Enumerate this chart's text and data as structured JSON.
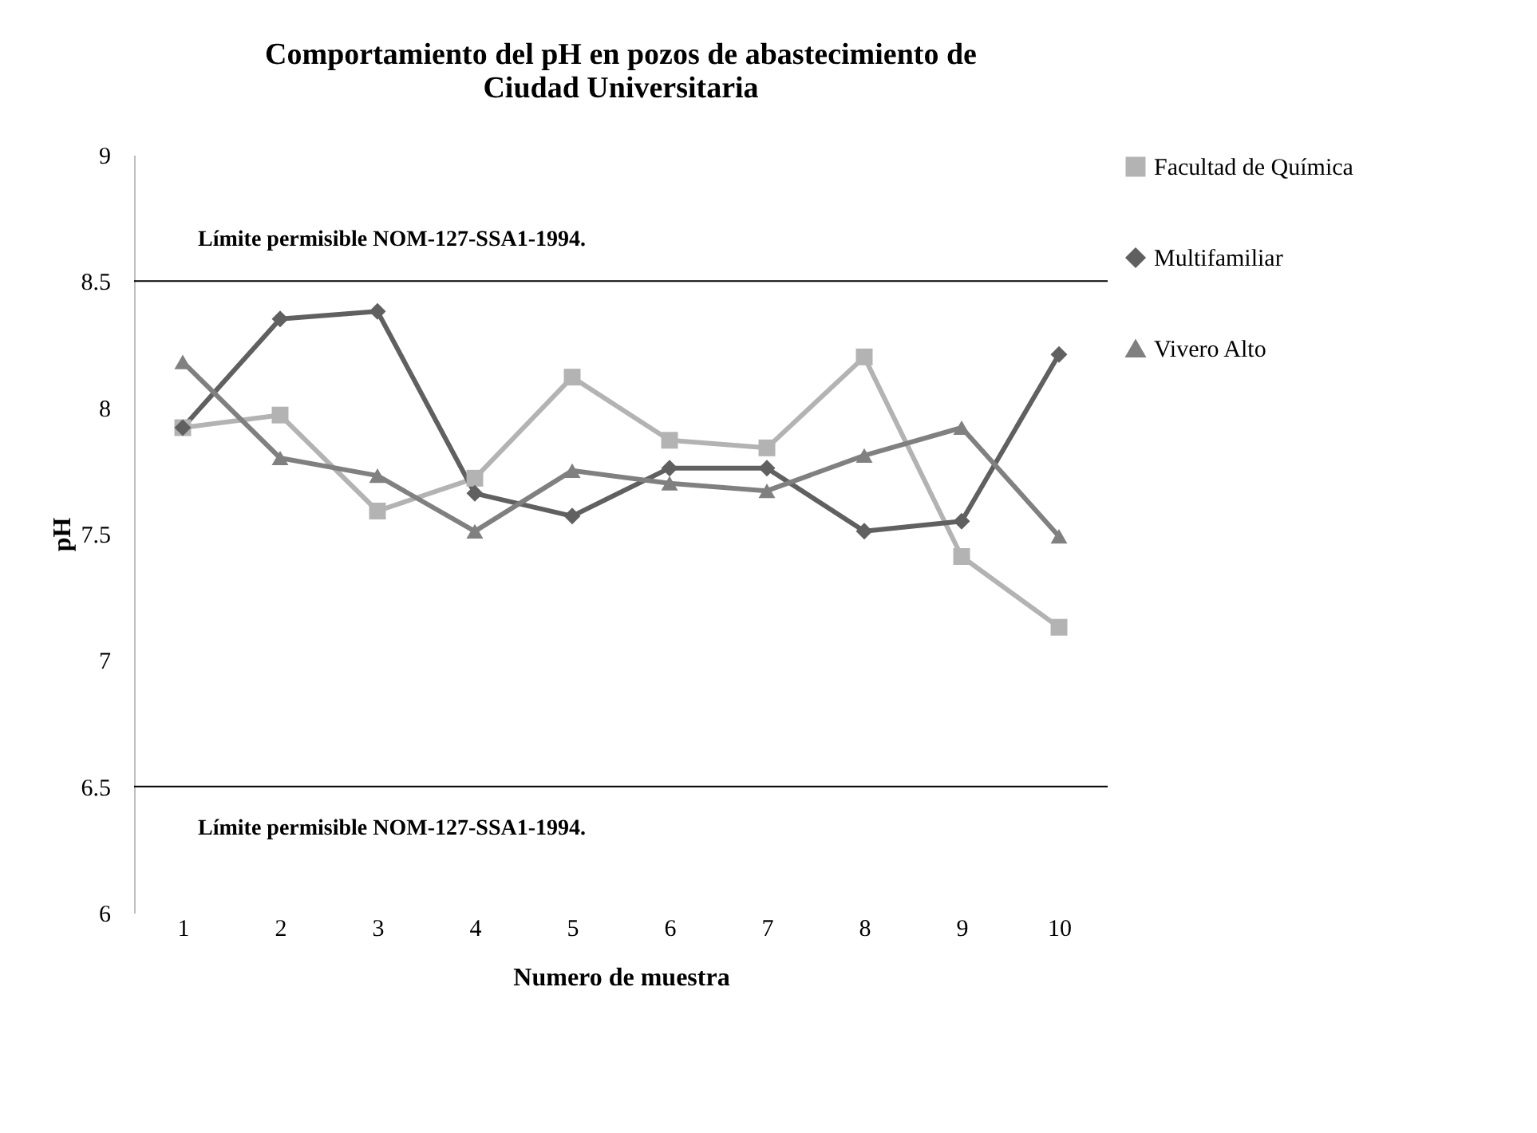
{
  "chart_data": {
    "type": "line",
    "title": "Comportamiento del pH  en pozos de abastecimiento de Ciudad Universitaria",
    "xlabel": "Numero de muestra",
    "ylabel": "pH",
    "categories": [
      "1",
      "2",
      "3",
      "4",
      "5",
      "6",
      "7",
      "8",
      "9",
      "10"
    ],
    "series": [
      {
        "name": "Facultad de Química",
        "color": "#b3b3b3",
        "marker": "square",
        "values": [
          7.92,
          7.97,
          7.59,
          7.72,
          8.12,
          7.87,
          7.84,
          8.2,
          7.41,
          7.13
        ]
      },
      {
        "name": "Multifamiliar",
        "color": "#606060",
        "marker": "diamond",
        "values": [
          7.92,
          8.35,
          8.38,
          7.66,
          7.57,
          7.76,
          7.76,
          7.51,
          7.55,
          8.21
        ]
      },
      {
        "name": "Vivero Alto",
        "color": "#808080",
        "marker": "triangle",
        "values": [
          8.18,
          7.8,
          7.73,
          7.51,
          7.75,
          7.7,
          7.67,
          7.81,
          7.92,
          7.49
        ]
      }
    ],
    "ylim": [
      6,
      9
    ],
    "yticks": [
      6,
      6.5,
      7,
      7.5,
      8,
      8.5,
      9
    ],
    "ref_lines": [
      {
        "axis": "y",
        "value": 8.5,
        "label": "Límite permisible NOM-127-SSA1-1994.",
        "color": "#000000"
      },
      {
        "axis": "y",
        "value": 6.5,
        "label": "Límite permisible NOM-127-SSA1-1994.",
        "color": "#000000"
      }
    ],
    "grid": false,
    "legend": "right",
    "line_style": "solid"
  }
}
